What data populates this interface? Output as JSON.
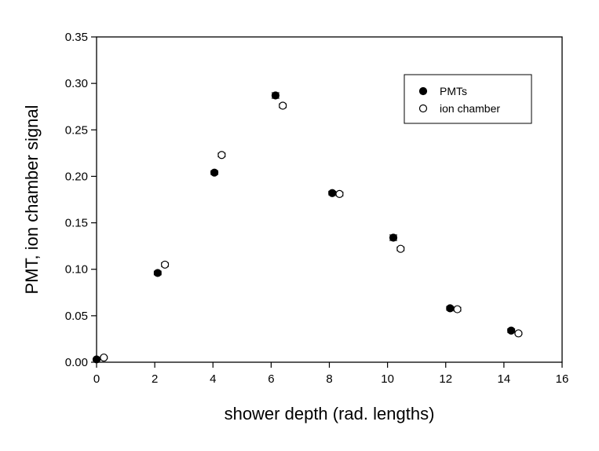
{
  "chart_data": {
    "type": "scatter",
    "title": "",
    "xlabel": "shower depth (rad. lengths)",
    "ylabel": "PMT, ion chamber signal",
    "xlim": [
      0,
      16
    ],
    "ylim": [
      0,
      0.35
    ],
    "xticks": [
      0,
      2,
      4,
      6,
      8,
      10,
      12,
      14,
      16
    ],
    "yticks": [
      0.0,
      0.05,
      0.1,
      0.15,
      0.2,
      0.25,
      0.3,
      0.35
    ],
    "xtick_labels": [
      "0",
      "2",
      "4",
      "6",
      "8",
      "10",
      "12",
      "14",
      "16"
    ],
    "ytick_labels": [
      "0.00",
      "0.05",
      "0.10",
      "0.15",
      "0.20",
      "0.25",
      "0.30",
      "0.35"
    ],
    "grid": false,
    "legend_position": "top-right",
    "series": [
      {
        "name": "PMTs",
        "marker": "filled-circle",
        "color": "#000000",
        "x": [
          0.0,
          2.1,
          4.05,
          6.15,
          8.1,
          10.2,
          12.15,
          14.25
        ],
        "y": [
          0.003,
          0.096,
          0.204,
          0.287,
          0.182,
          0.134,
          0.058,
          0.034
        ],
        "yerr": [
          0.001,
          0.002,
          0.002,
          0.003,
          0.002,
          0.003,
          0.002,
          0.002
        ]
      },
      {
        "name": "ion chamber",
        "marker": "open-circle",
        "color": "#000000",
        "x": [
          0.25,
          2.35,
          4.3,
          6.4,
          8.35,
          10.45,
          12.4,
          14.5
        ],
        "y": [
          0.005,
          0.105,
          0.223,
          0.276,
          0.181,
          0.122,
          0.057,
          0.031
        ],
        "yerr": [
          0.001,
          0.002,
          0.002,
          0.002,
          0.002,
          0.002,
          0.002,
          0.001
        ]
      }
    ]
  }
}
